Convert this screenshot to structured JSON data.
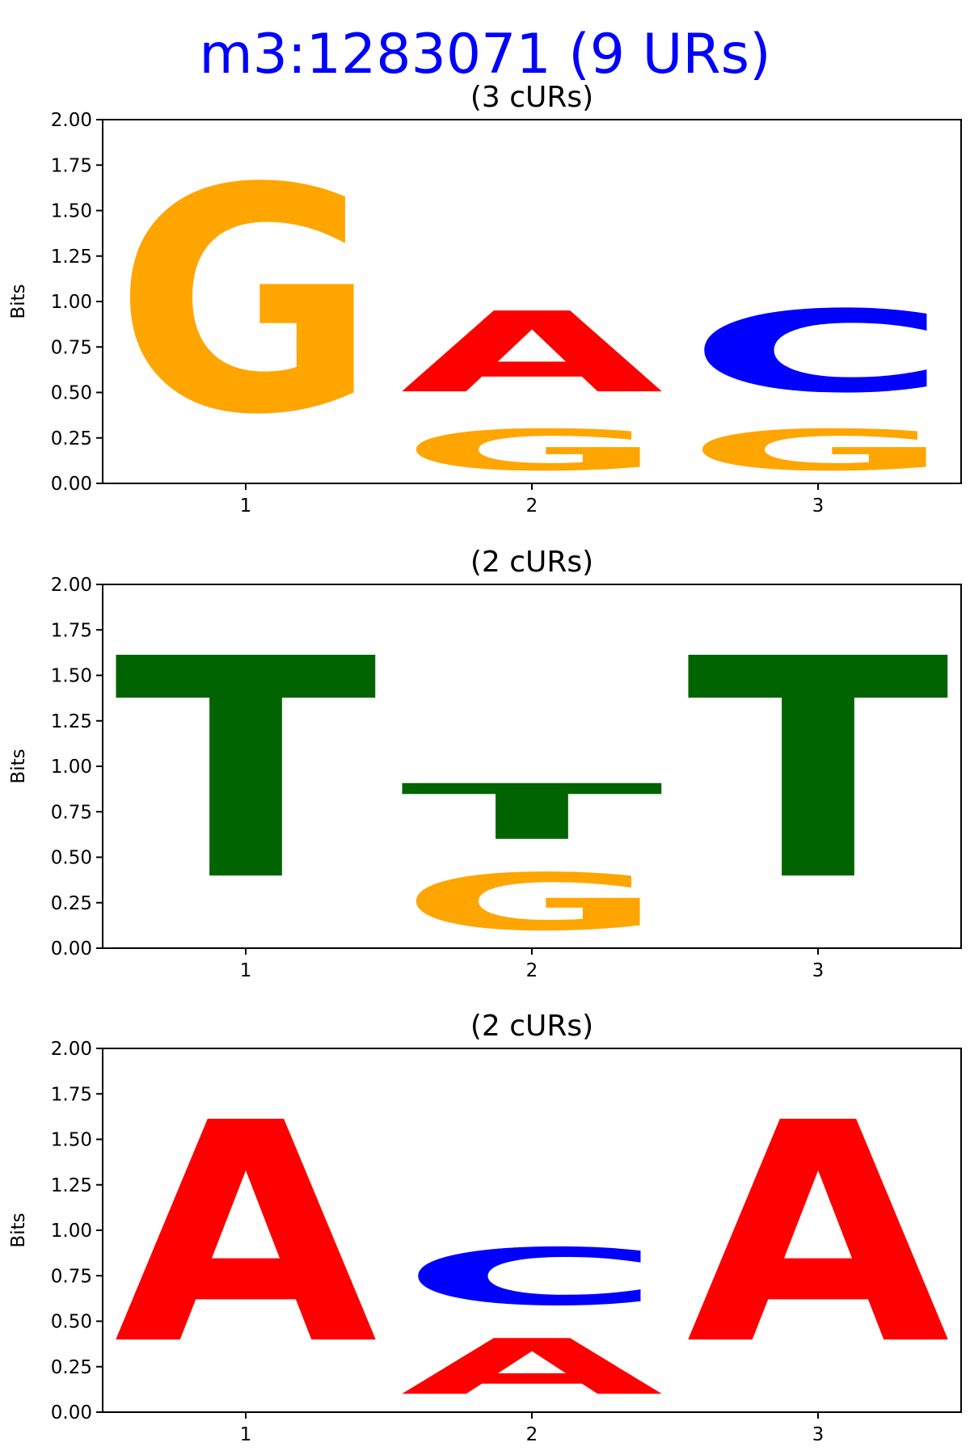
{
  "title": "m3:1283071 (9 URs)",
  "colors": {
    "title": "#0000ff",
    "A": "#ff0000",
    "C": "#0000ff",
    "G": "#ffa500",
    "T": "#006400"
  },
  "chart_data": [
    {
      "type": "sequence-logo",
      "title": "(3 cURs)",
      "ylabel": "Bits",
      "ylim": [
        0,
        2
      ],
      "yticks": [
        "0.00",
        "0.25",
        "0.50",
        "0.75",
        "1.00",
        "1.25",
        "1.50",
        "1.75",
        "2.00"
      ],
      "xticks": [
        "1",
        "2",
        "3"
      ],
      "positions": [
        [
          {
            "letter": "G",
            "bits": 1.98
          }
        ],
        [
          {
            "letter": "G",
            "bits": 0.36
          },
          {
            "letter": "A",
            "bits": 0.71
          }
        ],
        [
          {
            "letter": "G",
            "bits": 0.36
          },
          {
            "letter": "C",
            "bits": 0.72
          }
        ]
      ]
    },
    {
      "type": "sequence-logo",
      "title": "(2 cURs)",
      "ylabel": "Bits",
      "ylim": [
        0,
        2
      ],
      "yticks": [
        "0.00",
        "0.25",
        "0.50",
        "0.75",
        "1.00",
        "1.25",
        "1.50",
        "1.75",
        "2.00"
      ],
      "xticks": [
        "1",
        "2",
        "3"
      ],
      "positions": [
        [
          {
            "letter": "T",
            "bits": 1.94
          }
        ],
        [
          {
            "letter": "G",
            "bits": 0.5
          },
          {
            "letter": "T",
            "bits": 0.49
          }
        ],
        [
          {
            "letter": "T",
            "bits": 1.94
          }
        ]
      ]
    },
    {
      "type": "sequence-logo",
      "title": "(2 cURs)",
      "ylabel": "Bits",
      "ylim": [
        0,
        2
      ],
      "yticks": [
        "0.00",
        "0.25",
        "0.50",
        "0.75",
        "1.00",
        "1.25",
        "1.50",
        "1.75",
        "2.00"
      ],
      "xticks": [
        "1",
        "2",
        "3"
      ],
      "positions": [
        [
          {
            "letter": "A",
            "bits": 1.94
          }
        ],
        [
          {
            "letter": "A",
            "bits": 0.49
          },
          {
            "letter": "C",
            "bits": 0.5
          }
        ],
        [
          {
            "letter": "A",
            "bits": 1.94
          }
        ]
      ]
    }
  ]
}
